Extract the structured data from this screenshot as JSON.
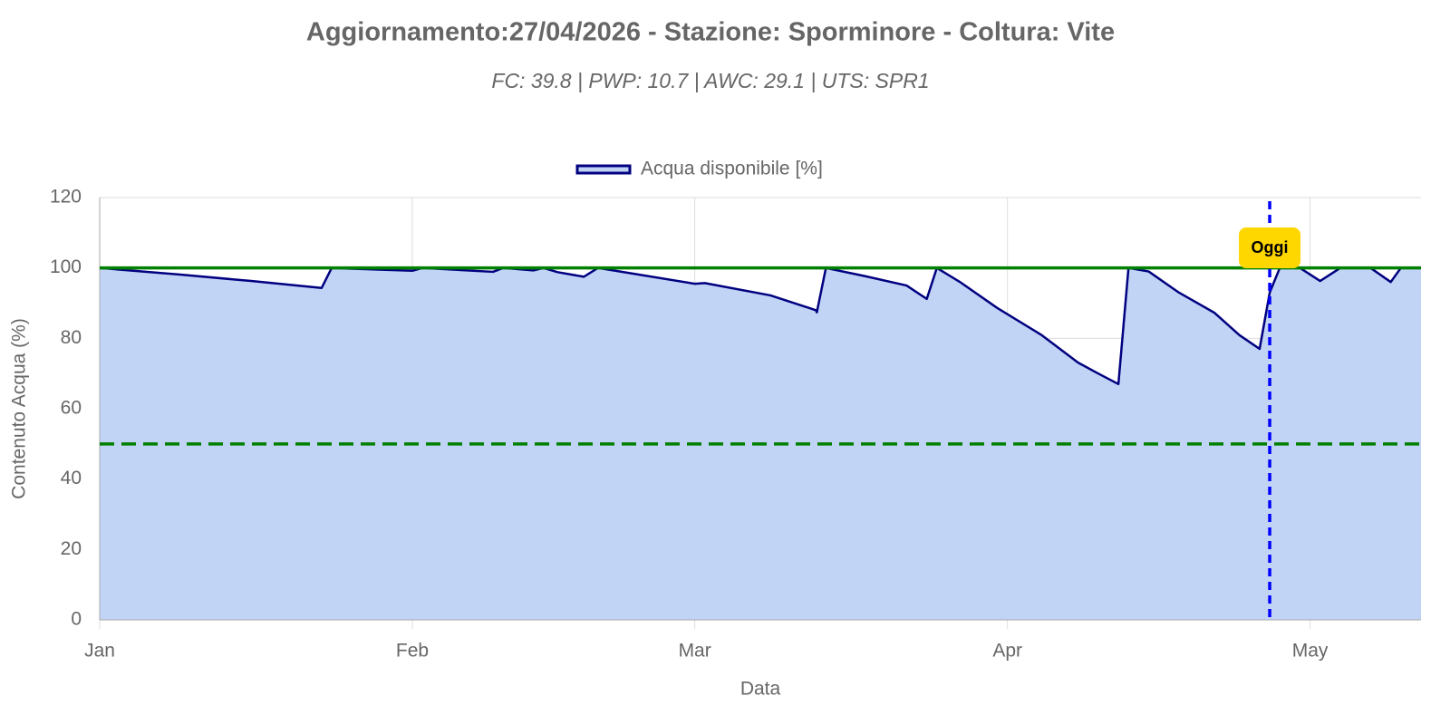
{
  "chart_data": {
    "type": "area",
    "title": "Aggiornamento:27/04/2026 - Stazione: Sporminore - Coltura: Vite",
    "subtitle": "FC: 39.8 | PWP: 10.7 | AWC: 29.1 | UTS: SPR1",
    "x_label": "Data",
    "y_label": "Contenuto Acqua (%)",
    "x": [
      0,
      8,
      15,
      22,
      23,
      31,
      32,
      39,
      40,
      43,
      44,
      45.4,
      48,
      49.4,
      59,
      60,
      66.5,
      71,
      71.1,
      72,
      76,
      80,
      82,
      83,
      85.4,
      89,
      93.4,
      97,
      99,
      101,
      102,
      104,
      107,
      110.5,
      113,
      115,
      116,
      117,
      119,
      121,
      123,
      126,
      128,
      129,
      131
    ],
    "series": [
      {
        "name": "Acqua disponibile [%]",
        "color": "#000080",
        "fill": "#c2d4f6",
        "values": [
          100,
          98.1,
          96.3,
          94.3,
          100,
          99.2,
          100,
          98.9,
          100,
          99.3,
          100,
          98.8,
          97.5,
          100,
          95.5,
          95.7,
          92.2,
          88,
          87.4,
          100,
          97.6,
          95,
          91.2,
          100,
          95.8,
          88.6,
          80.9,
          73.1,
          70,
          67,
          100,
          99,
          93,
          87.3,
          80.9,
          77,
          93,
          100,
          100,
          96.3,
          100,
          100,
          96,
          100,
          100
        ]
      }
    ],
    "xlim": [
      0,
      131
    ],
    "xticks": [
      {
        "value": 0,
        "label": "Jan"
      },
      {
        "value": 31,
        "label": "Feb"
      },
      {
        "value": 59,
        "label": "Mar"
      },
      {
        "value": 90,
        "label": "Apr"
      },
      {
        "value": 120,
        "label": "May"
      }
    ],
    "ylim": [
      0,
      120
    ],
    "yticks": [
      0,
      20,
      40,
      60,
      80,
      100,
      120
    ],
    "grid": true,
    "legend": "top",
    "reference_lines": [
      {
        "value": 100,
        "color": "#008000",
        "dashed": false
      },
      {
        "value": 50,
        "color": "#008000",
        "dashed": true
      }
    ],
    "today_line": {
      "x": 116,
      "label": "Oggi",
      "color": "#0000ff",
      "label_color": "#ffd700"
    }
  }
}
